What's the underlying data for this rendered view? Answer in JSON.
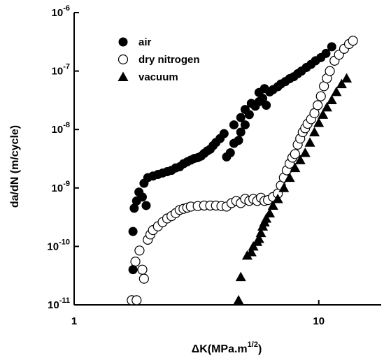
{
  "chart_data": {
    "type": "scatter",
    "title": "",
    "xlabel": "ΔK(MPa.m",
    "xlabel_sup": "1/2",
    "xlabel_close": ")",
    "ylabel": "da/dN (m/cycle)",
    "x_scale": "log",
    "y_scale": "log",
    "xlim": [
      1,
      18
    ],
    "ylim": [
      1e-11,
      1e-06
    ],
    "grid": false,
    "legend_position": "top-left",
    "x_ticks": [
      {
        "value": 1,
        "label": "1"
      },
      {
        "value": 10,
        "label": "10"
      }
    ],
    "y_ticks": [
      {
        "value": 1e-11,
        "base": "10",
        "exp": "-11"
      },
      {
        "value": 1e-10,
        "base": "10",
        "exp": "-10"
      },
      {
        "value": 1e-09,
        "base": "10",
        "exp": "-9"
      },
      {
        "value": 1e-08,
        "base": "10",
        "exp": "-8"
      },
      {
        "value": 1e-07,
        "base": "10",
        "exp": "-7"
      },
      {
        "value": 1e-06,
        "base": "10",
        "exp": "-6"
      }
    ],
    "series": [
      {
        "name": "air",
        "marker": "filled-circle",
        "points": [
          [
            1.74,
            4e-11
          ],
          [
            1.74,
            1.8e-10
          ],
          [
            1.76,
            4.5e-10
          ],
          [
            1.8,
            6e-10
          ],
          [
            1.84,
            8.5e-10
          ],
          [
            1.9,
            7e-10
          ],
          [
            1.93,
            1.2e-09
          ],
          [
            1.97,
            5e-10
          ],
          [
            2.0,
            1.5e-09
          ],
          [
            2.1,
            1.6e-09
          ],
          [
            2.2,
            1.7e-09
          ],
          [
            2.3,
            1.8e-09
          ],
          [
            2.4,
            1.9e-09
          ],
          [
            2.5,
            2e-09
          ],
          [
            2.6,
            2.2e-09
          ],
          [
            2.7,
            2.3e-09
          ],
          [
            2.8,
            2.6e-09
          ],
          [
            2.9,
            2.8e-09
          ],
          [
            3.0,
            3e-09
          ],
          [
            3.1,
            3.2e-09
          ],
          [
            3.2,
            3.3e-09
          ],
          [
            3.3,
            3.5e-09
          ],
          [
            3.4,
            3.9e-09
          ],
          [
            3.5,
            4.3e-09
          ],
          [
            3.6,
            4.6e-09
          ],
          [
            3.7,
            5.3e-09
          ],
          [
            3.8,
            6e-09
          ],
          [
            3.95,
            7e-09
          ],
          [
            4.1,
            8.5e-09
          ],
          [
            4.2,
            3.4e-09
          ],
          [
            4.35,
            4e-09
          ],
          [
            4.5,
            5.8e-09
          ],
          [
            4.5,
            1.2e-08
          ],
          [
            4.7,
            6.5e-09
          ],
          [
            4.8,
            9e-09
          ],
          [
            4.8,
            1.6e-08
          ],
          [
            5.0,
            1.2e-08
          ],
          [
            5.0,
            2.2e-08
          ],
          [
            5.2,
            1.8e-08
          ],
          [
            5.3,
            2.8e-08
          ],
          [
            5.5,
            2.5e-08
          ],
          [
            5.7,
            3e-08
          ],
          [
            5.7,
            4.3e-08
          ],
          [
            5.9,
            3.4e-08
          ],
          [
            6.0,
            5e-08
          ],
          [
            6.1,
            2.6e-08
          ],
          [
            6.3,
            4.4e-08
          ],
          [
            6.5,
            4.8e-08
          ],
          [
            6.8,
            5.4e-08
          ],
          [
            7.0,
            6e-08
          ],
          [
            7.3,
            6.6e-08
          ],
          [
            7.6,
            7.4e-08
          ],
          [
            7.9,
            8e-08
          ],
          [
            8.2,
            9e-08
          ],
          [
            8.5,
            1e-07
          ],
          [
            8.9,
            1.15e-07
          ],
          [
            9.3,
            1.3e-07
          ],
          [
            9.7,
            1.5e-07
          ],
          [
            10.2,
            1.7e-07
          ],
          [
            10.7,
            2e-07
          ],
          [
            11.3,
            2.6e-07
          ]
        ]
      },
      {
        "name": "dry nitrogen",
        "marker": "open-circle",
        "points": [
          [
            1.72,
            1.2e-11
          ],
          [
            1.8,
            1.2e-11
          ],
          [
            1.78,
            5.5e-11
          ],
          [
            1.85,
            8.5e-11
          ],
          [
            1.9,
            4e-11
          ],
          [
            1.93,
            2.8e-11
          ],
          [
            2.0,
            1.3e-10
          ],
          [
            2.05,
            1.6e-10
          ],
          [
            2.1,
            1.9e-10
          ],
          [
            2.2,
            2.2e-10
          ],
          [
            2.3,
            2.6e-10
          ],
          [
            2.4,
            3e-10
          ],
          [
            2.5,
            3.3e-10
          ],
          [
            2.6,
            3.7e-10
          ],
          [
            2.7,
            4.2e-10
          ],
          [
            2.8,
            4.4e-10
          ],
          [
            2.9,
            4.6e-10
          ],
          [
            3.0,
            4.8e-10
          ],
          [
            3.2,
            4.9e-10
          ],
          [
            3.4,
            5e-10
          ],
          [
            3.6,
            5e-10
          ],
          [
            3.8,
            5e-10
          ],
          [
            4.0,
            4.9e-10
          ],
          [
            4.2,
            4.8e-10
          ],
          [
            4.4,
            5.5e-10
          ],
          [
            4.6,
            6e-10
          ],
          [
            4.8,
            5.5e-10
          ],
          [
            5.0,
            6.5e-10
          ],
          [
            5.2,
            6e-10
          ],
          [
            5.4,
            6.5e-10
          ],
          [
            5.6,
            6e-10
          ],
          [
            5.8,
            6.8e-10
          ],
          [
            6.0,
            6e-10
          ],
          [
            6.2,
            6.2e-10
          ],
          [
            6.5,
            7e-10
          ],
          [
            6.8,
            8e-10
          ],
          [
            7.0,
            1.1e-09
          ],
          [
            7.2,
            1.5e-09
          ],
          [
            7.4,
            2e-09
          ],
          [
            7.6,
            2.6e-09
          ],
          [
            7.8,
            3.3e-09
          ],
          [
            8.0,
            3.8e-09
          ],
          [
            8.2,
            5.5e-09
          ],
          [
            8.4,
            7e-09
          ],
          [
            8.6,
            9e-09
          ],
          [
            8.8,
            1.05e-08
          ],
          [
            9.0,
            1.25e-08
          ],
          [
            9.3,
            1.5e-08
          ],
          [
            9.6,
            1.9e-08
          ],
          [
            9.9,
            2.6e-08
          ],
          [
            10.2,
            3.7e-08
          ],
          [
            10.5,
            5.5e-08
          ],
          [
            10.8,
            7.5e-08
          ],
          [
            11.1,
            1e-07
          ],
          [
            11.6,
            1.5e-07
          ],
          [
            12.1,
            1.9e-07
          ],
          [
            12.7,
            2.4e-07
          ],
          [
            13.3,
            2.9e-07
          ],
          [
            13.8,
            3.3e-07
          ]
        ]
      },
      {
        "name": "vacuum",
        "marker": "filled-triangle",
        "points": [
          [
            4.7,
            1.2e-11
          ],
          [
            4.8,
            3e-11
          ],
          [
            5.1,
            7e-11
          ],
          [
            5.3,
            8e-11
          ],
          [
            5.4,
            1e-10
          ],
          [
            5.6,
            1.2e-10
          ],
          [
            5.7,
            1.35e-10
          ],
          [
            5.8,
            1.7e-10
          ],
          [
            5.9,
            2.2e-10
          ],
          [
            6.0,
            2.6e-10
          ],
          [
            6.1,
            3e-10
          ],
          [
            6.3,
            3.7e-10
          ],
          [
            6.5,
            5e-10
          ],
          [
            6.8,
            6.5e-10
          ],
          [
            7.2,
            1e-09
          ],
          [
            7.6,
            1.5e-09
          ],
          [
            8.0,
            2.2e-09
          ],
          [
            8.4,
            3e-09
          ],
          [
            8.8,
            4e-09
          ],
          [
            9.2,
            6e-09
          ],
          [
            9.6,
            9e-09
          ],
          [
            10.0,
            1.3e-08
          ],
          [
            10.4,
            1.8e-08
          ],
          [
            10.8,
            2.4e-08
          ],
          [
            11.3,
            3.2e-08
          ],
          [
            11.8,
            4.4e-08
          ],
          [
            12.4,
            6e-08
          ],
          [
            13.0,
            7.5e-08
          ]
        ]
      }
    ]
  }
}
